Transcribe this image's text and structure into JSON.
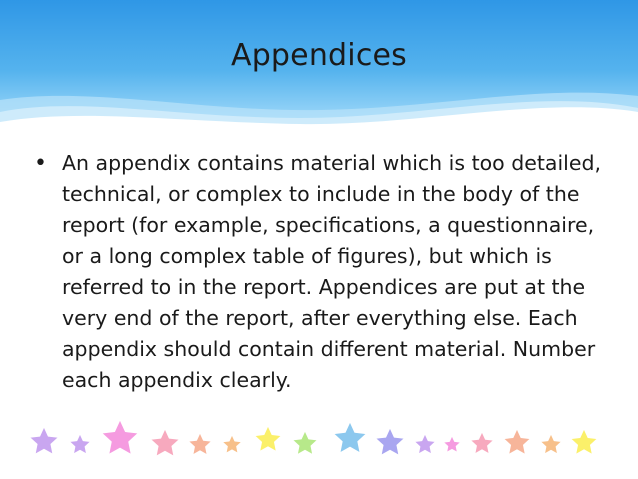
{
  "slide": {
    "title": "Appendices",
    "bullets": [
      {
        "text": "An appendix contains material which is too detailed, technical, or complex to include in the body of the report (for example, specifications, a questionnaire, or a long complex table of figures), but which is referred to in the report. Appendices are put at the very end of the report, after everything else. Each appendix should contain different material. Number each appendix clearly."
      }
    ],
    "bullet_glyph": "•"
  },
  "colors": {
    "header_dark": "#2f97e6",
    "header_light": "#8fd0f7",
    "text": "#1a1a1a"
  },
  "decorations": {
    "star_colors": [
      "#c9a6f0",
      "#c9a6f0",
      "#f59be0",
      "#f7a9be",
      "#f7b59a",
      "#f7c08a",
      "#fbf06a",
      "#b7e98a",
      "#8cc8ee",
      "#a9a6f0",
      "#c9a6f0",
      "#f59be0",
      "#f7a9be",
      "#f7b59a",
      "#f7c08a",
      "#fbf06a"
    ]
  }
}
